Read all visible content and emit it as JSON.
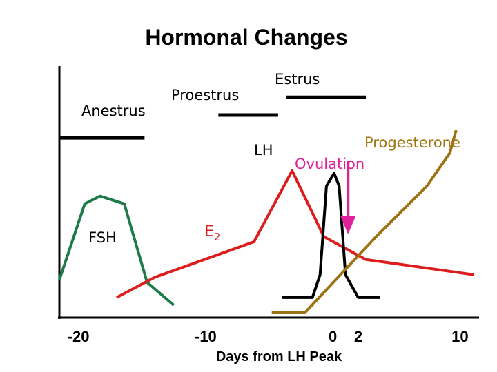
{
  "chart_data": {
    "type": "line",
    "title": "Hormonal Changes",
    "xlabel": "Days from LH Peak",
    "ylabel": "",
    "xlim": [
      -21.5,
      11.5
    ],
    "ylim": [
      0,
      100
    ],
    "x_ticks": [
      {
        "value": -20,
        "label": "-20"
      },
      {
        "value": -10,
        "label": "-10"
      },
      {
        "value": 0,
        "label": "0"
      },
      {
        "value": 2,
        "label": "2"
      },
      {
        "value": 10,
        "label": "10"
      }
    ],
    "phases": [
      {
        "name": "Anestrus",
        "start": -21.5,
        "end": -14.8,
        "level": 69
      },
      {
        "name": "Proestrus",
        "start": -9.0,
        "end": -4.3,
        "level": 78
      },
      {
        "name": "Estrus",
        "start": -3.7,
        "end": 2.6,
        "level": 85
      }
    ],
    "series": [
      {
        "name": "FSH",
        "color": "#1f7a4a",
        "x": [
          -21.5,
          -19.5,
          -18.3,
          -16.4,
          -14.6,
          -12.5
        ],
        "y": [
          13,
          43,
          46,
          43,
          12,
          3
        ]
      },
      {
        "name": "E2",
        "label_main": "E",
        "label_sub": "2",
        "color": "#dd1d1d",
        "x": [
          -17,
          -14,
          -6.2,
          -3.2,
          -0.7,
          2.6,
          11.1
        ],
        "y": [
          6,
          14,
          28,
          56,
          30,
          21,
          15
        ]
      },
      {
        "name": "LH",
        "color": "#000000",
        "x": [
          -4.0,
          -2.5,
          -1.6,
          -1.0,
          -0.5,
          0.1,
          0.5,
          1.0,
          2.0,
          3.7
        ],
        "y": [
          6,
          6,
          6,
          15,
          50,
          55,
          50,
          15,
          6,
          6
        ]
      },
      {
        "name": "Progesterone",
        "color": "#9c7213",
        "x": [
          -4.8,
          -2.2,
          0.6,
          3.4,
          7.4,
          9.2,
          9.7
        ],
        "y": [
          0,
          0,
          15,
          30,
          50,
          63,
          72
        ]
      }
    ],
    "annotations": [
      {
        "text": "Ovulation",
        "arrow_x": 1.2,
        "arrow_top": 60,
        "arrow_bottom": 31,
        "color": "#e0219a"
      }
    ]
  }
}
